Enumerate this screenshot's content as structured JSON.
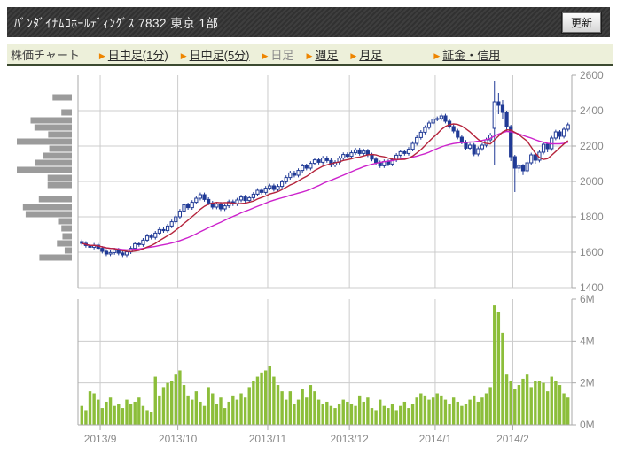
{
  "header": {
    "title": "ﾊﾞﾝﾀﾞｲﾅﾑｺﾎｰﾙﾃﾞｨﾝｸﾞｽ 7832 東京 1部",
    "refresh_label": "更新"
  },
  "nav": {
    "label": "株価チャート",
    "items": [
      {
        "label": "日中足(1分)",
        "link": true
      },
      {
        "label": "日中足(5分)",
        "link": true
      },
      {
        "label": "日足",
        "link": false
      },
      {
        "label": "週足",
        "link": true
      },
      {
        "label": "月足",
        "link": true
      }
    ],
    "right_item": {
      "label": "証金・信用",
      "link": true
    }
  },
  "colors": {
    "candle": "#203a96",
    "ma_short": "#b5243c",
    "ma_long": "#cc22cc",
    "volume_bar": "#8cbe3a",
    "profile_bar": "#9b9b9b",
    "grid": "#cccccc",
    "axis": "#aaaaaa",
    "axis_text": "#8a8a8a",
    "nav_bg": "#edf0da",
    "nav_arrow": "#ee8500"
  },
  "chart_data": {
    "type": "candlestick+volume",
    "title": "",
    "x_labels": [
      "2013/9",
      "2013/10",
      "2013/11",
      "2013/12",
      "2014/1",
      "2014/2"
    ],
    "month_start_indexes": [
      5,
      24,
      46,
      66,
      87,
      106
    ],
    "price_axis": {
      "min": 1400,
      "max": 2600,
      "tick_step": 200,
      "tick_labels": [
        "1400",
        "1600",
        "1800",
        "2000",
        "2200",
        "2400",
        "2600"
      ]
    },
    "volume_axis": {
      "min": 0,
      "max": 6,
      "tick_labels": [
        "0M",
        "2M",
        "4M",
        "6M"
      ]
    },
    "ma_short_period": 9,
    "ma_long_period": 25,
    "candles_ohlc": [
      [
        1660,
        1672,
        1638,
        1650
      ],
      [
        1650,
        1662,
        1626,
        1638
      ],
      [
        1638,
        1650,
        1616,
        1628
      ],
      [
        1628,
        1652,
        1616,
        1640
      ],
      [
        1640,
        1652,
        1610,
        1622
      ],
      [
        1622,
        1634,
        1593,
        1605
      ],
      [
        1605,
        1617,
        1578,
        1590
      ],
      [
        1590,
        1610,
        1578,
        1598
      ],
      [
        1598,
        1624,
        1586,
        1612
      ],
      [
        1612,
        1624,
        1583,
        1595
      ],
      [
        1595,
        1607,
        1573,
        1585
      ],
      [
        1585,
        1614,
        1573,
        1602
      ],
      [
        1602,
        1634,
        1590,
        1622
      ],
      [
        1622,
        1660,
        1610,
        1648
      ],
      [
        1648,
        1660,
        1631,
        1643
      ],
      [
        1643,
        1680,
        1631,
        1668
      ],
      [
        1668,
        1704,
        1656,
        1692
      ],
      [
        1692,
        1704,
        1672,
        1684
      ],
      [
        1684,
        1720,
        1672,
        1708
      ],
      [
        1708,
        1740,
        1696,
        1728
      ],
      [
        1728,
        1740,
        1710,
        1722
      ],
      [
        1722,
        1760,
        1710,
        1748
      ],
      [
        1748,
        1784,
        1736,
        1772
      ],
      [
        1772,
        1812,
        1760,
        1800
      ],
      [
        1800,
        1844,
        1788,
        1832
      ],
      [
        1832,
        1880,
        1820,
        1868
      ],
      [
        1868,
        1880,
        1840,
        1852
      ],
      [
        1852,
        1894,
        1840,
        1882
      ],
      [
        1882,
        1917,
        1870,
        1905
      ],
      [
        1905,
        1937,
        1893,
        1925
      ],
      [
        1925,
        1937,
        1886,
        1898
      ],
      [
        1898,
        1910,
        1866,
        1878
      ],
      [
        1878,
        1890,
        1843,
        1855
      ],
      [
        1855,
        1884,
        1843,
        1872
      ],
      [
        1872,
        1884,
        1833,
        1845
      ],
      [
        1845,
        1874,
        1833,
        1862
      ],
      [
        1862,
        1897,
        1850,
        1885
      ],
      [
        1885,
        1897,
        1861,
        1873
      ],
      [
        1873,
        1907,
        1861,
        1895
      ],
      [
        1895,
        1924,
        1883,
        1912
      ],
      [
        1912,
        1924,
        1880,
        1892
      ],
      [
        1892,
        1920,
        1880,
        1908
      ],
      [
        1908,
        1940,
        1896,
        1928
      ],
      [
        1928,
        1962,
        1916,
        1950
      ],
      [
        1950,
        1962,
        1926,
        1938
      ],
      [
        1938,
        1974,
        1926,
        1962
      ],
      [
        1962,
        1987,
        1950,
        1975
      ],
      [
        1975,
        1987,
        1943,
        1955
      ],
      [
        1955,
        1984,
        1943,
        1972
      ],
      [
        1972,
        2010,
        1960,
        1998
      ],
      [
        1998,
        2034,
        1986,
        2022
      ],
      [
        2022,
        2060,
        2010,
        2048
      ],
      [
        2048,
        2060,
        2023,
        2035
      ],
      [
        2035,
        2074,
        2023,
        2062
      ],
      [
        2062,
        2100,
        2050,
        2088
      ],
      [
        2088,
        2100,
        2063,
        2075
      ],
      [
        2075,
        2114,
        2063,
        2102
      ],
      [
        2102,
        2134,
        2090,
        2122
      ],
      [
        2122,
        2134,
        2096,
        2108
      ],
      [
        2108,
        2144,
        2096,
        2132
      ],
      [
        2132,
        2144,
        2106,
        2118
      ],
      [
        2118,
        2130,
        2080,
        2092
      ],
      [
        2092,
        2120,
        2080,
        2108
      ],
      [
        2108,
        2144,
        2096,
        2132
      ],
      [
        2132,
        2164,
        2120,
        2152
      ],
      [
        2152,
        2164,
        2130,
        2142
      ],
      [
        2142,
        2174,
        2130,
        2162
      ],
      [
        2162,
        2190,
        2150,
        2178
      ],
      [
        2178,
        2190,
        2146,
        2158
      ],
      [
        2158,
        2184,
        2146,
        2172
      ],
      [
        2172,
        2184,
        2138,
        2150
      ],
      [
        2150,
        2162,
        2114,
        2126
      ],
      [
        2126,
        2138,
        2094,
        2106
      ],
      [
        2106,
        2118,
        2076,
        2088
      ],
      [
        2088,
        2124,
        2076,
        2112
      ],
      [
        2112,
        2124,
        2086,
        2098
      ],
      [
        2098,
        2134,
        2086,
        2122
      ],
      [
        2122,
        2160,
        2110,
        2148
      ],
      [
        2148,
        2180,
        2136,
        2168
      ],
      [
        2168,
        2180,
        2146,
        2158
      ],
      [
        2158,
        2194,
        2146,
        2182
      ],
      [
        2182,
        2227,
        2170,
        2215
      ],
      [
        2215,
        2260,
        2203,
        2248
      ],
      [
        2248,
        2290,
        2236,
        2278
      ],
      [
        2278,
        2317,
        2266,
        2305
      ],
      [
        2305,
        2342,
        2293,
        2330
      ],
      [
        2330,
        2364,
        2318,
        2352
      ],
      [
        2352,
        2367,
        2340,
        2355
      ],
      [
        2355,
        2382,
        2343,
        2370
      ],
      [
        2370,
        2382,
        2328,
        2340
      ],
      [
        2340,
        2352,
        2298,
        2310
      ],
      [
        2310,
        2322,
        2273,
        2285
      ],
      [
        2285,
        2297,
        2238,
        2250
      ],
      [
        2250,
        2262,
        2210,
        2222
      ],
      [
        2222,
        2234,
        2176,
        2188
      ],
      [
        2188,
        2217,
        2176,
        2205
      ],
      [
        2205,
        2217,
        2143,
        2155
      ],
      [
        2155,
        2197,
        2143,
        2185
      ],
      [
        2185,
        2217,
        2173,
        2205
      ],
      [
        2205,
        2247,
        2193,
        2235
      ],
      [
        2235,
        2274,
        2223,
        2262
      ],
      [
        2300,
        2570,
        2090,
        2450
      ],
      [
        2450,
        2500,
        2380,
        2430
      ],
      [
        2430,
        2460,
        2355,
        2390
      ],
      [
        2390,
        2400,
        2285,
        2310
      ],
      [
        2310,
        2320,
        2115,
        2140
      ],
      [
        2140,
        2150,
        1940,
        2075
      ],
      [
        2075,
        2102,
        2050,
        2090
      ],
      [
        2090,
        2098,
        2036,
        2060
      ],
      [
        2060,
        2117,
        2048,
        2105
      ],
      [
        2105,
        2162,
        2093,
        2150
      ],
      [
        2150,
        2158,
        2100,
        2120
      ],
      [
        2120,
        2177,
        2108,
        2165
      ],
      [
        2165,
        2222,
        2153,
        2210
      ],
      [
        2210,
        2218,
        2165,
        2185
      ],
      [
        2185,
        2257,
        2173,
        2245
      ],
      [
        2245,
        2292,
        2233,
        2280
      ],
      [
        2280,
        2290,
        2238,
        2255
      ],
      [
        2255,
        2307,
        2243,
        2295
      ],
      [
        2295,
        2332,
        2283,
        2320
      ]
    ],
    "volumes_millions": [
      0.9,
      0.7,
      1.6,
      1.5,
      1.2,
      0.8,
      1.1,
      1.3,
      0.9,
      1.0,
      0.8,
      1.2,
      1.0,
      1.1,
      1.3,
      0.9,
      0.7,
      0.6,
      2.3,
      1.4,
      1.8,
      2.0,
      2.1,
      2.4,
      2.6,
      1.9,
      1.4,
      1.2,
      1.6,
      1.1,
      0.9,
      1.8,
      1.5,
      1.0,
      1.3,
      0.8,
      1.1,
      1.4,
      1.2,
      1.5,
      1.3,
      1.8,
      2.1,
      2.3,
      2.5,
      2.6,
      2.8,
      2.3,
      1.9,
      1.6,
      1.2,
      1.6,
      1.0,
      1.2,
      1.7,
      1.3,
      1.9,
      1.6,
      1.2,
      1.0,
      1.1,
      0.9,
      0.8,
      1.0,
      1.2,
      1.1,
      1.0,
      0.9,
      1.4,
      1.1,
      1.3,
      0.8,
      0.7,
      1.2,
      0.9,
      0.8,
      1.0,
      0.7,
      0.9,
      1.1,
      0.8,
      1.0,
      1.3,
      1.5,
      1.4,
      1.2,
      1.3,
      1.5,
      1.4,
      1.2,
      1.0,
      1.3,
      1.1,
      0.9,
      1.0,
      1.2,
      1.4,
      1.1,
      1.3,
      1.5,
      1.8,
      5.7,
      5.4,
      4.4,
      2.4,
      2.1,
      1.7,
      1.9,
      2.2,
      2.4,
      1.8,
      2.1,
      2.1,
      2.0,
      1.6,
      2.3,
      2.1,
      1.9,
      1.5,
      1.3
    ],
    "volume_profile": [
      {
        "price": 2475,
        "frac": 0.35
      },
      {
        "price": 2390,
        "frac": 0.19
      },
      {
        "price": 2345,
        "frac": 0.75
      },
      {
        "price": 2305,
        "frac": 0.68
      },
      {
        "price": 2265,
        "frac": 0.43
      },
      {
        "price": 2225,
        "frac": 1.0
      },
      {
        "price": 2185,
        "frac": 0.41
      },
      {
        "price": 2145,
        "frac": 0.52
      },
      {
        "price": 2105,
        "frac": 0.67
      },
      {
        "price": 2065,
        "frac": 1.0
      },
      {
        "price": 2020,
        "frac": 0.44
      },
      {
        "price": 1980,
        "frac": 0.44
      },
      {
        "price": 1900,
        "frac": 0.6
      },
      {
        "price": 1855,
        "frac": 0.89
      },
      {
        "price": 1815,
        "frac": 0.84
      },
      {
        "price": 1775,
        "frac": 0.25
      },
      {
        "price": 1735,
        "frac": 0.19
      },
      {
        "price": 1690,
        "frac": 0.17
      },
      {
        "price": 1650,
        "frac": 0.27
      },
      {
        "price": 1610,
        "frac": 0.13
      },
      {
        "price": 1570,
        "frac": 0.59
      }
    ]
  }
}
